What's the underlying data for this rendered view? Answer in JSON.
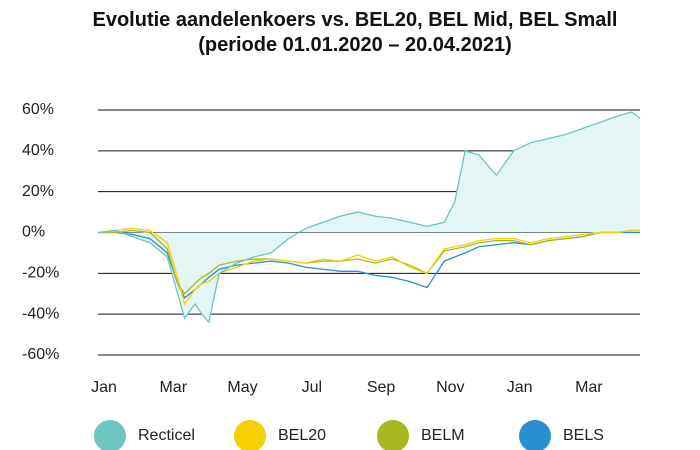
{
  "chart_data": {
    "type": "line",
    "title": "Evolutie aandelenkoers vs. BEL20, BEL Mid, BEL Small (periode 01.01.2020 – 20.04.2021)",
    "x": [
      0,
      0.5,
      1,
      1.5,
      2,
      2.3,
      2.5,
      2.8,
      3,
      3.2,
      3.5,
      4,
      4.5,
      5,
      5.5,
      6,
      6.5,
      7,
      7.5,
      8,
      8.5,
      9,
      9.5,
      10,
      10.3,
      10.6,
      11,
      11.5,
      12,
      12.5,
      13,
      13.5,
      14,
      14.5,
      15,
      15.4,
      15.65
    ],
    "series": [
      {
        "name": "Recticel",
        "color": "#6cc5c0",
        "fill": "#e3f5f4",
        "values": [
          0,
          1,
          -2,
          -5,
          -12,
          -30,
          -42,
          -35,
          -40,
          -44,
          -20,
          -15,
          -12,
          -10,
          -3,
          2,
          5,
          8,
          10,
          8,
          7,
          5,
          3,
          5,
          15,
          40,
          38,
          28,
          40,
          44,
          46,
          48,
          51,
          54,
          57,
          59,
          56
        ]
      },
      {
        "name": "BEL20",
        "color": "#f5d000",
        "values": [
          0,
          1,
          2,
          1,
          -5,
          -22,
          -35,
          -28,
          -25,
          -24,
          -20,
          -17,
          -14,
          -13,
          -14,
          -15,
          -13,
          -14,
          -11,
          -14,
          -12,
          -17,
          -20,
          -8,
          -7,
          -6,
          -4,
          -3,
          -3,
          -5,
          -3,
          -2,
          -1,
          0,
          0,
          1,
          1
        ]
      },
      {
        "name": "BELM",
        "color": "#a8b820",
        "values": [
          0,
          0,
          1,
          0,
          -8,
          -25,
          -30,
          -25,
          -22,
          -20,
          -16,
          -14,
          -13,
          -13,
          -14,
          -15,
          -14,
          -14,
          -13,
          -15,
          -13,
          -16,
          -20,
          -9,
          -8,
          -7,
          -5,
          -4,
          -4,
          -6,
          -4,
          -3,
          -2,
          0,
          0,
          1,
          1
        ]
      },
      {
        "name": "BELS",
        "color": "#2a8fd0",
        "values": [
          0,
          0,
          -1,
          -3,
          -10,
          -25,
          -32,
          -28,
          -25,
          -22,
          -18,
          -16,
          -15,
          -14,
          -15,
          -17,
          -18,
          -19,
          -19,
          -21,
          -22,
          -24,
          -27,
          -14,
          -12,
          -10,
          -7,
          -6,
          -5,
          -6,
          -4,
          -3,
          -2,
          0,
          0,
          0,
          0
        ]
      }
    ],
    "xlim": [
      0,
      15.65
    ],
    "xticks": [
      {
        "value": 0,
        "label": "Jan"
      },
      {
        "value": 2,
        "label": "Mar"
      },
      {
        "value": 4,
        "label": "May"
      },
      {
        "value": 6,
        "label": "Jul"
      },
      {
        "value": 8,
        "label": "Sep"
      },
      {
        "value": 10,
        "label": "Nov"
      },
      {
        "value": 12,
        "label": "Jan"
      },
      {
        "value": 14,
        "label": "Mar"
      }
    ],
    "ylim": [
      -60,
      60
    ],
    "yticks": [
      {
        "value": -60,
        "label": "-60%"
      },
      {
        "value": -40,
        "label": "-40%"
      },
      {
        "value": -20,
        "label": "-20%"
      },
      {
        "value": 0,
        "label": "0%"
      },
      {
        "value": 20,
        "label": "20%"
      },
      {
        "value": 40,
        "label": "40%"
      },
      {
        "value": 60,
        "label": "60%"
      }
    ],
    "grid": true,
    "legend": "bottom"
  }
}
